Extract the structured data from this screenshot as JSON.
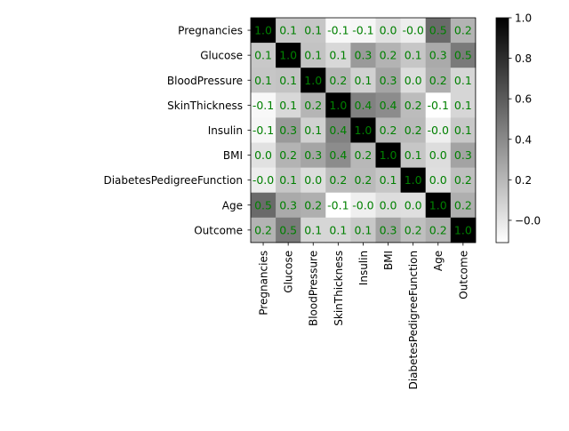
{
  "chart_data": {
    "type": "heatmap",
    "colormap": "gray_r",
    "value_range": [
      -0.11,
      1.0
    ],
    "value_label_color": "#008000",
    "rows": [
      "Pregnancies",
      "Glucose",
      "BloodPressure",
      "SkinThickness",
      "Insulin",
      "BMI",
      "DiabetesPedigreeFunction",
      "Age",
      "Outcome"
    ],
    "columns": [
      "Pregnancies",
      "Glucose",
      "BloodPressure",
      "SkinThickness",
      "Insulin",
      "BMI",
      "DiabetesPedigreeFunction",
      "Age",
      "Outcome"
    ],
    "values": [
      [
        1.0,
        0.13,
        0.14,
        -0.08,
        -0.07,
        0.02,
        -0.03,
        0.54,
        0.22
      ],
      [
        0.13,
        1.0,
        0.15,
        0.06,
        0.33,
        0.22,
        0.14,
        0.26,
        0.47
      ],
      [
        0.14,
        0.15,
        1.0,
        0.21,
        0.09,
        0.28,
        0.04,
        0.24,
        0.07
      ],
      [
        -0.08,
        0.06,
        0.21,
        1.0,
        0.44,
        0.39,
        0.18,
        -0.11,
        0.07
      ],
      [
        -0.07,
        0.33,
        0.09,
        0.44,
        1.0,
        0.2,
        0.19,
        -0.04,
        0.13
      ],
      [
        0.02,
        0.22,
        0.28,
        0.39,
        0.2,
        1.0,
        0.14,
        0.04,
        0.29
      ],
      [
        -0.03,
        0.14,
        0.04,
        0.18,
        0.19,
        0.14,
        1.0,
        0.03,
        0.17
      ],
      [
        0.54,
        0.26,
        0.24,
        -0.11,
        -0.04,
        0.04,
        0.03,
        1.0,
        0.24
      ],
      [
        0.22,
        0.47,
        0.07,
        0.07,
        0.13,
        0.29,
        0.17,
        0.24,
        1.0
      ]
    ],
    "colorbar": {
      "ticks": [
        -0.0,
        0.2,
        0.4,
        0.6,
        0.8,
        1.0
      ],
      "tick_labels": [
        "−0.0",
        "0.2",
        "0.4",
        "0.6",
        "0.8",
        "1.0"
      ]
    }
  }
}
